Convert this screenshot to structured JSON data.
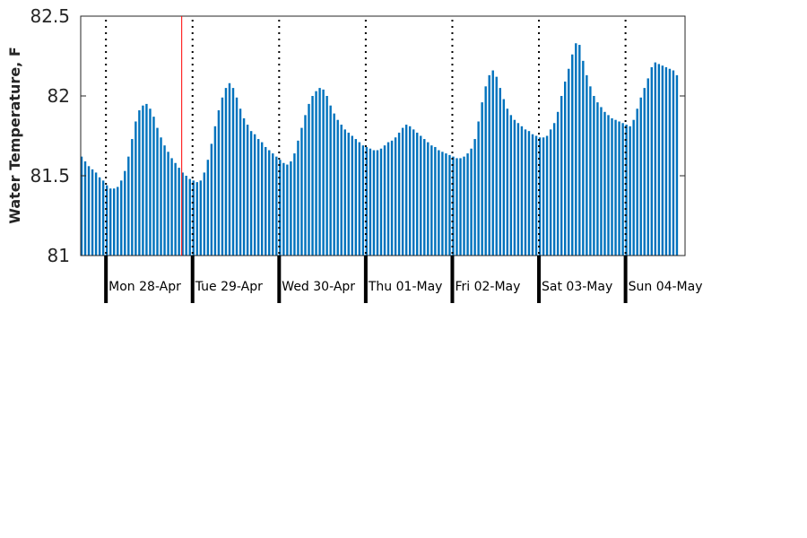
{
  "chart_data": {
    "type": "bar",
    "title": "",
    "xlabel": "",
    "ylabel": "Water Temperature, F",
    "ylim": [
      81,
      82.5
    ],
    "yticks": [
      {
        "value": 81,
        "label": "81"
      },
      {
        "value": 81.5,
        "label": "81.5"
      },
      {
        "value": 82,
        "label": "82"
      },
      {
        "value": 82.5,
        "label": "82.5"
      }
    ],
    "x_unit": "hours",
    "x_range": [
      0,
      167
    ],
    "day_boundaries": [
      {
        "hour": 6.75,
        "label": "Mon 28-Apr"
      },
      {
        "hour": 30.75,
        "label": "Tue 29-Apr"
      },
      {
        "hour": 54.75,
        "label": "Wed 30-Apr"
      },
      {
        "hour": 78.75,
        "label": "Thu 01-May"
      },
      {
        "hour": 102.75,
        "label": "Fri 02-May"
      },
      {
        "hour": 126.75,
        "label": "Sat 03-May"
      },
      {
        "hour": 150.75,
        "label": "Sun 04-May"
      }
    ],
    "current_time_marker_hour": 27.75,
    "bar_color": "#0072BD",
    "marker_color": "#FF0000",
    "series": [
      {
        "values": [
          81.62,
          81.59,
          81.56,
          81.54,
          81.52,
          81.49,
          81.47,
          81.44,
          81.42,
          81.42,
          81.43,
          81.47,
          81.53,
          81.62,
          81.73,
          81.84,
          81.91,
          81.94,
          81.95,
          81.92,
          81.87,
          81.8,
          81.74,
          81.69,
          81.65,
          81.61,
          81.58,
          81.55,
          81.52,
          81.5,
          81.48,
          81.47,
          81.46,
          81.47,
          81.52,
          81.6,
          81.7,
          81.81,
          81.91,
          81.99,
          82.05,
          82.08,
          82.05,
          81.99,
          81.92,
          81.86,
          81.82,
          81.78,
          81.76,
          81.73,
          81.71,
          81.68,
          81.66,
          81.64,
          81.62,
          81.6,
          81.58,
          81.57,
          81.59,
          81.64,
          81.72,
          81.8,
          81.88,
          81.95,
          82.0,
          82.03,
          82.05,
          82.04,
          82.0,
          81.94,
          81.89,
          81.85,
          81.82,
          81.79,
          81.77,
          81.75,
          81.73,
          81.71,
          81.69,
          81.68,
          81.67,
          81.66,
          81.66,
          81.67,
          81.69,
          81.71,
          81.72,
          81.74,
          81.77,
          81.8,
          81.82,
          81.81,
          81.79,
          81.77,
          81.75,
          81.73,
          81.71,
          81.69,
          81.68,
          81.66,
          81.65,
          81.64,
          81.63,
          81.62,
          81.61,
          81.61,
          81.62,
          81.64,
          81.67,
          81.73,
          81.84,
          81.96,
          82.06,
          82.13,
          82.16,
          82.12,
          82.05,
          81.98,
          81.92,
          81.88,
          81.85,
          81.83,
          81.81,
          81.79,
          81.78,
          81.76,
          81.75,
          81.74,
          81.74,
          81.75,
          81.79,
          81.83,
          81.9,
          82.0,
          82.09,
          82.17,
          82.26,
          82.33,
          82.32,
          82.22,
          82.13,
          82.06,
          82.0,
          81.96,
          81.93,
          81.9,
          81.88,
          81.86,
          81.85,
          81.84,
          81.83,
          81.82,
          81.81,
          81.85,
          81.92,
          81.99,
          82.05,
          82.11,
          82.18,
          82.21,
          82.2,
          82.19,
          82.18,
          82.17,
          82.16,
          82.13
        ]
      }
    ],
    "grid": false,
    "legend": "none"
  }
}
